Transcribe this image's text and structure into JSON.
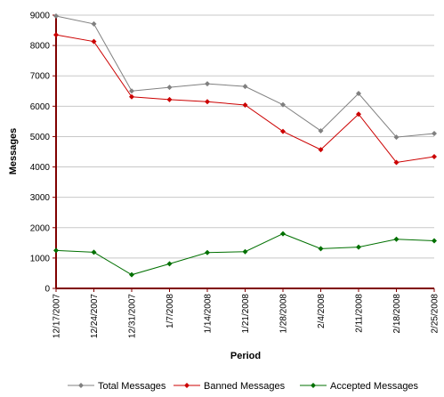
{
  "chart_data": {
    "type": "line",
    "title": "",
    "xlabel": "Period",
    "ylabel": "Messages",
    "categories": [
      "12/17/2007",
      "12/24/2007",
      "12/31/2007",
      "1/7/2008",
      "1/14/2008",
      "1/21/2008",
      "1/28/2008",
      "2/4/2008",
      "2/11/2008",
      "2/18/2008",
      "2/25/2008"
    ],
    "ylim": [
      0,
      9000
    ],
    "yticks": [
      "0",
      "1000",
      "2000",
      "3000",
      "4000",
      "5000",
      "6000",
      "7000",
      "8000",
      "9000"
    ],
    "grid": true,
    "legend_position": "bottom",
    "series": [
      {
        "name": "Total Messages",
        "color": "#808080",
        "values": [
          8970,
          8710,
          6500,
          6620,
          6740,
          6650,
          6050,
          5190,
          6420,
          4980,
          5100
        ]
      },
      {
        "name": "Banned Messages",
        "color": "#cc0000",
        "values": [
          8350,
          8130,
          6310,
          6220,
          6150,
          6040,
          5170,
          4570,
          5740,
          4150,
          4340
        ]
      },
      {
        "name": "Accepted Messages",
        "color": "#007000",
        "values": [
          1250,
          1190,
          450,
          810,
          1180,
          1210,
          1800,
          1310,
          1360,
          1620,
          1570
        ]
      }
    ]
  }
}
